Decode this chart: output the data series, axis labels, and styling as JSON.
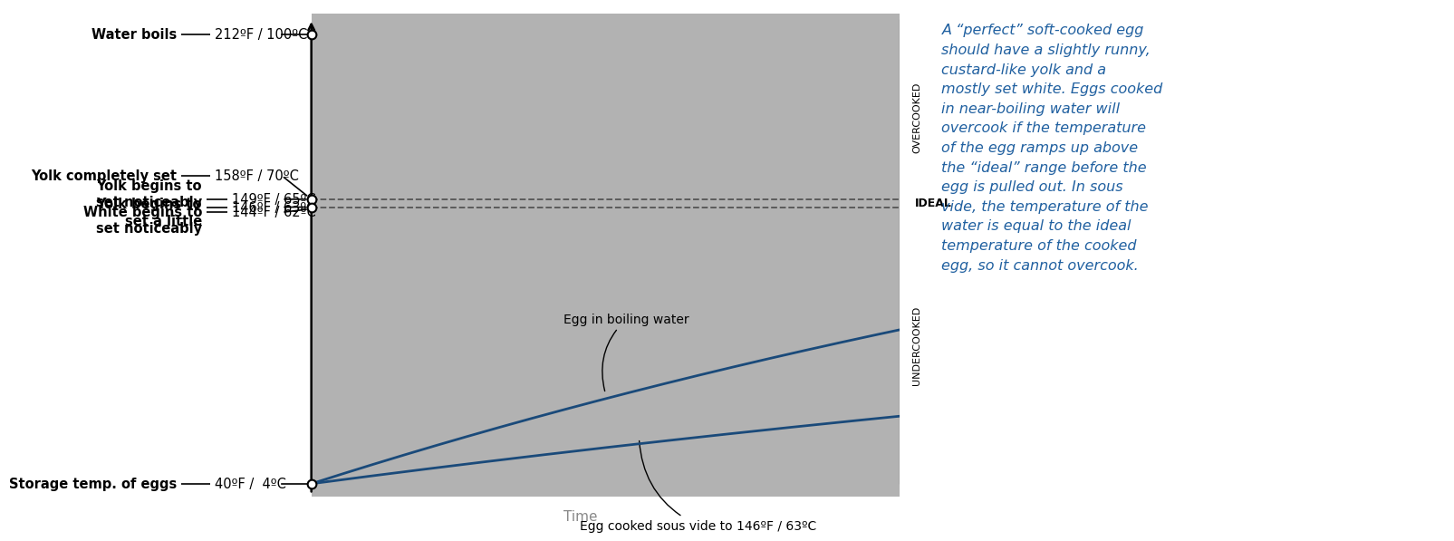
{
  "T_boil": 212,
  "T_yolk_set": 158,
  "T_yolk_noticeably": 149,
  "T_yolk_little": 146,
  "T_white": 144,
  "T_storage": 40,
  "y_min": 40,
  "y_max": 212,
  "gray_bg": "#b2b2b2",
  "boiling_curve_color": "#1a4a7a",
  "sous_vide_curve_color": "#1a4a7a",
  "dashed_line_color": "#444444",
  "overcooked_label": "OVERCOOKED",
  "ideal_label": "IDEAL",
  "undercooked_label": "UNDERCOOKED",
  "egg_boiling_label": "Egg in boiling water",
  "sous_vide_label": "Egg cooked sous vide to 146ºF / 63ºC",
  "time_label": "Time",
  "annotation_color": "#2060a0",
  "annotation_text": "A “perfect” soft-cooked egg\nshould have a slightly runny,\ncustard-like yolk and a\nmostly set white. Eggs cooked\nin near-boiling water will\novercook if the temperature\nof the egg ramps up above\nthe “ideal” range before the\negg is pulled out. In sous\nvide, the temperature of the\nwater is equal to the ideal\ntemperature of the cooked\negg, so it cannot overcook.",
  "k_boil": 0.42,
  "k_sv": 0.28
}
